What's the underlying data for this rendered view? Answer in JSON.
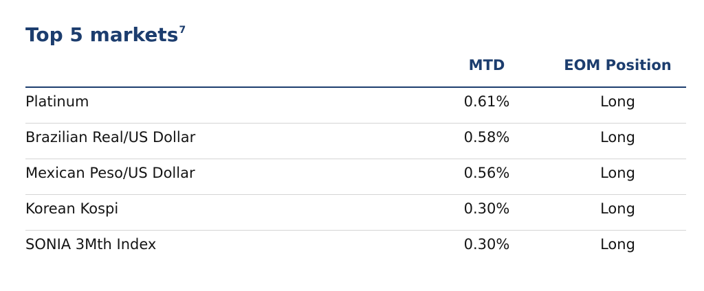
{
  "title": "Top 5 markets",
  "title_note": "7",
  "table": {
    "header": [
      "",
      "MTD",
      "EOM Position"
    ],
    "rows": [
      [
        "Platinum",
        "0.61%",
        "Long"
      ],
      [
        "Brazilian Real/US Dollar",
        "0.58%",
        "Long"
      ],
      [
        "Mexican Peso/US Dollar",
        "0.56%",
        "Long"
      ],
      [
        "Korean Kospi",
        "0.30%",
        "Long"
      ],
      [
        "SONIA 3Mth Index",
        "0.30%",
        "Long"
      ]
    ]
  }
}
